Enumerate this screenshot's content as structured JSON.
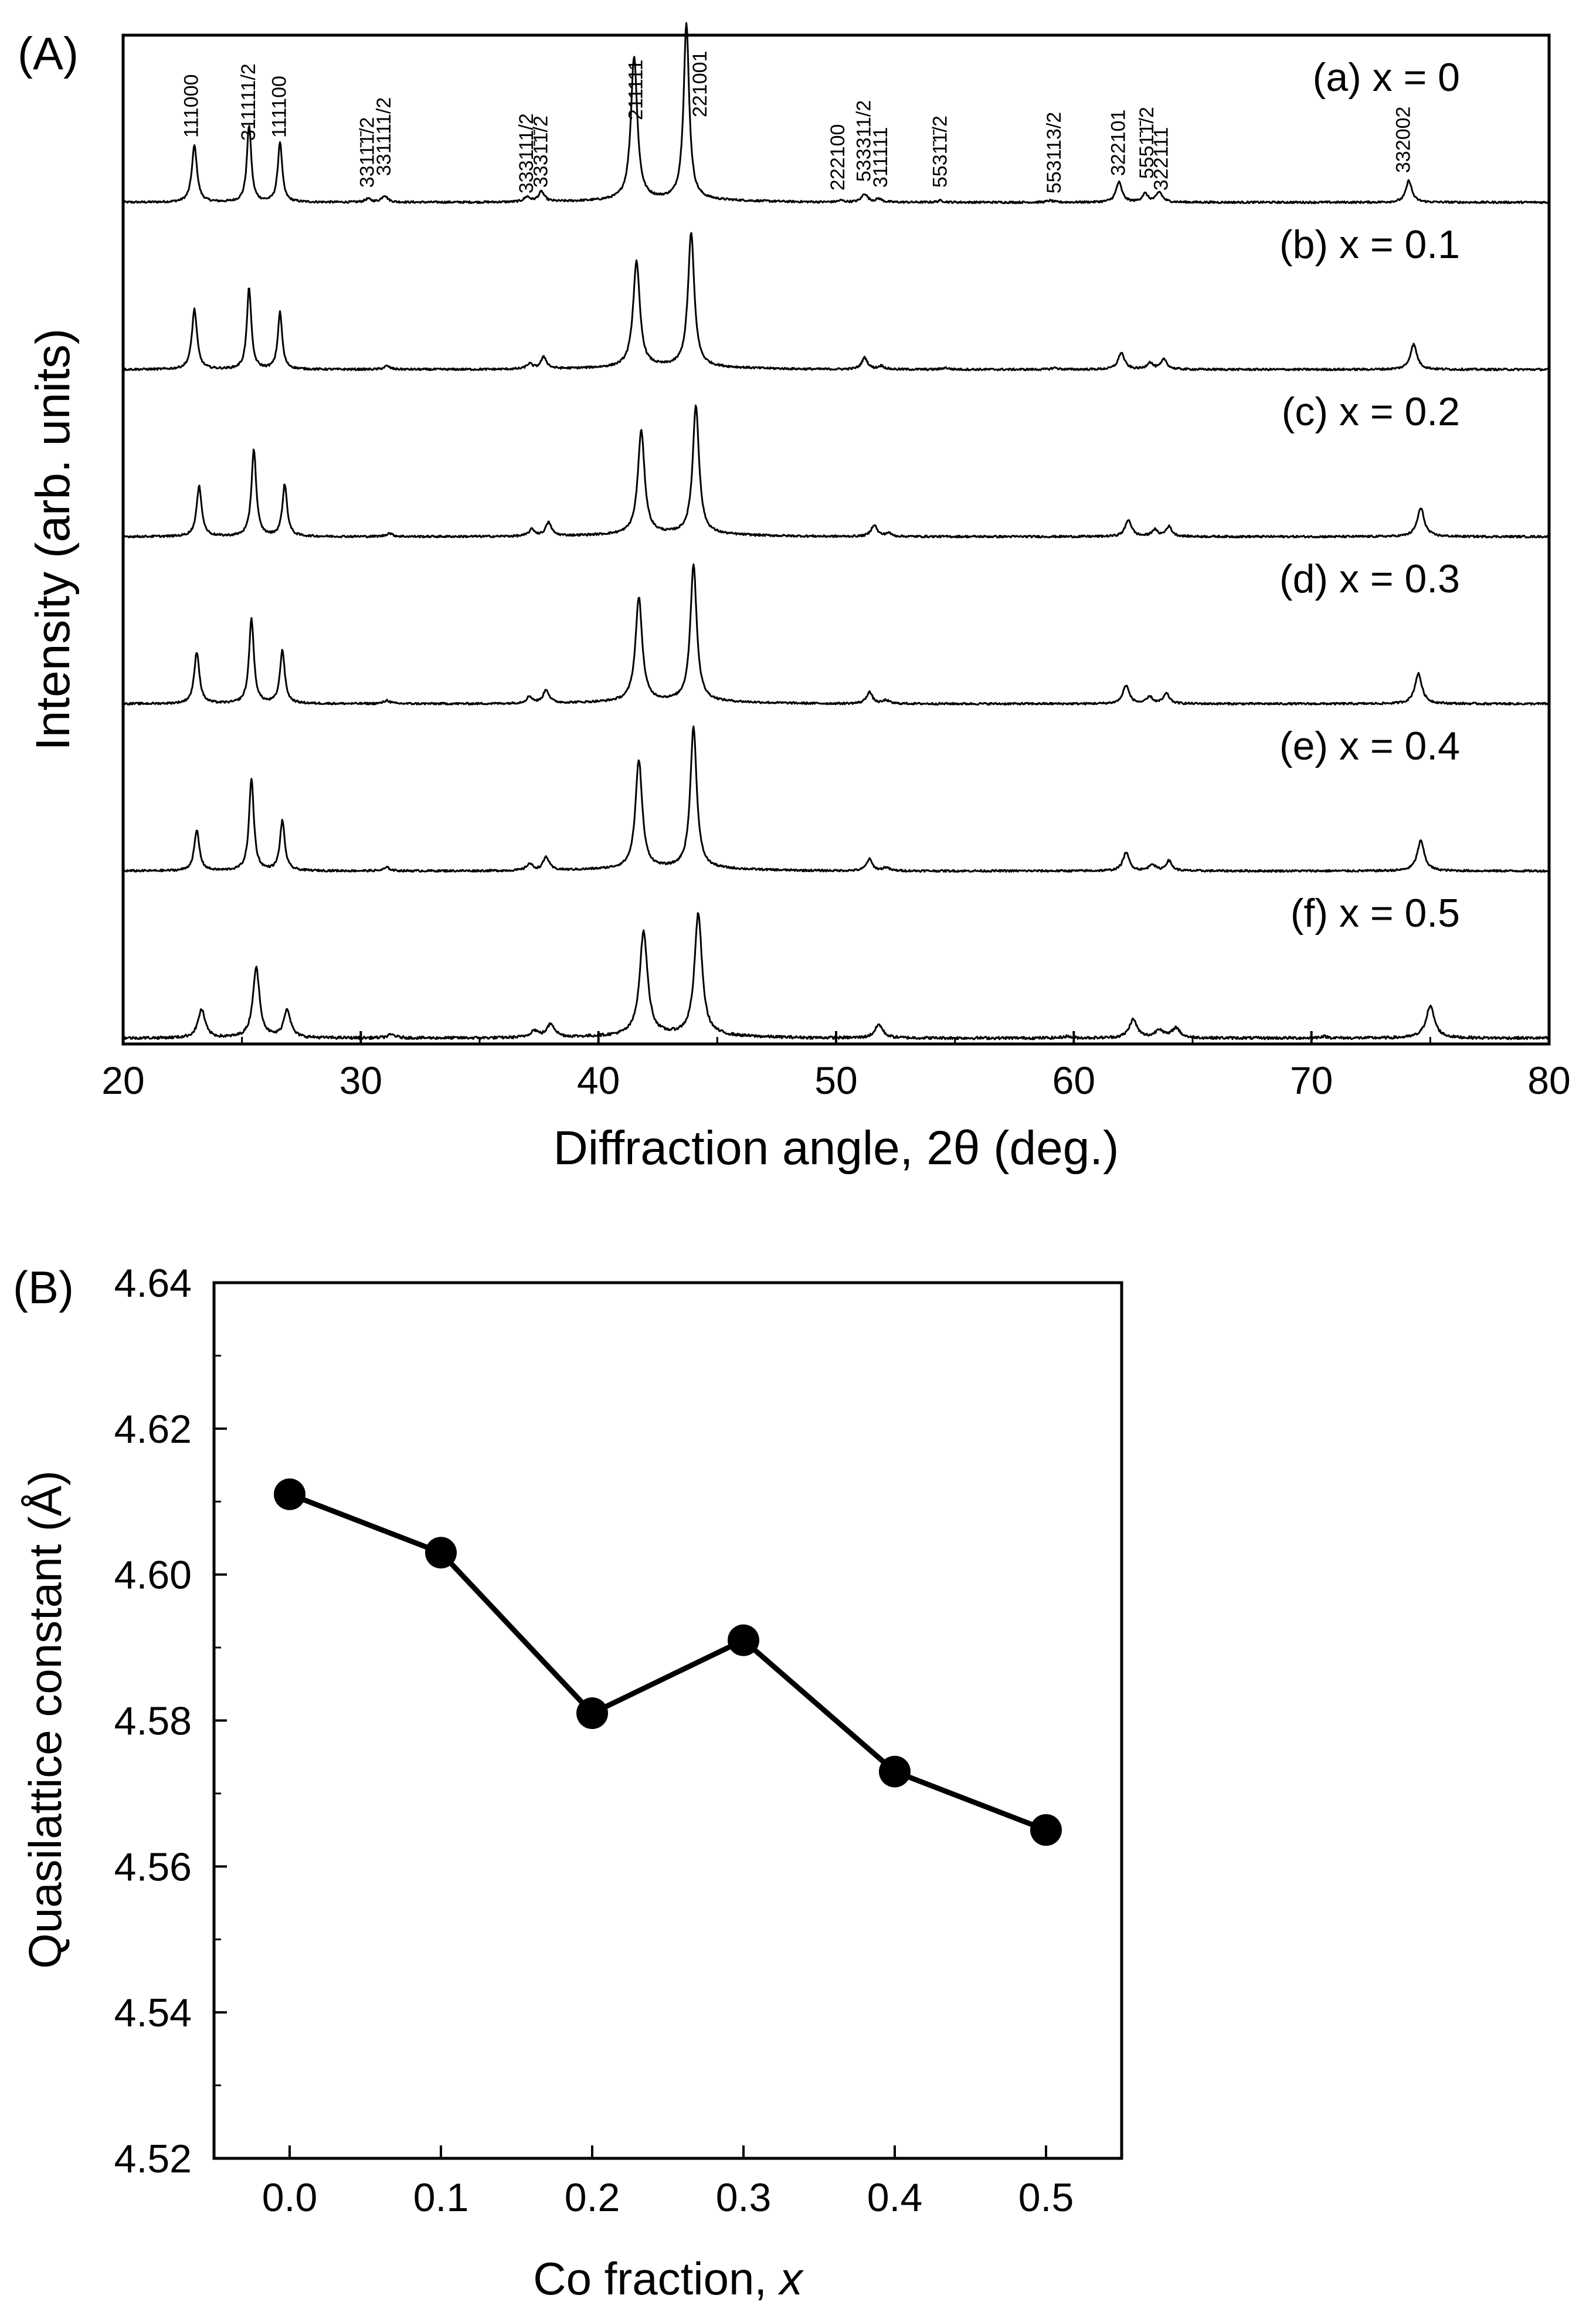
{
  "chart_data": [
    {
      "panel_label": "(A)",
      "type": "line",
      "title": "",
      "xlabel": "Diffraction angle, 2θ (deg.)",
      "ylabel": "Intensity (arb. units)",
      "xlim": [
        20,
        80
      ],
      "xticks": [
        20,
        30,
        40,
        50,
        60,
        70,
        80
      ],
      "grid": false,
      "series": [
        {
          "name": "(a) x = 0",
          "baseline": 1.0,
          "noise": 0.006,
          "peaks": [
            [
              23.0,
              0.34,
              0.13
            ],
            [
              25.3,
              0.46,
              0.11
            ],
            [
              26.6,
              0.36,
              0.11
            ],
            [
              30.3,
              0.02,
              0.15
            ],
            [
              31.0,
              0.04,
              0.15
            ],
            [
              37.0,
              0.03,
              0.15
            ],
            [
              37.6,
              0.06,
              0.15
            ],
            [
              41.5,
              0.86,
              0.16
            ],
            [
              43.7,
              1.05,
              0.14
            ],
            [
              50.2,
              0.01,
              0.15
            ],
            [
              51.2,
              0.05,
              0.15
            ],
            [
              51.8,
              0.02,
              0.15
            ],
            [
              54.4,
              0.01,
              0.15
            ],
            [
              59.0,
              0.01,
              0.15
            ],
            [
              61.9,
              0.12,
              0.15
            ],
            [
              63.0,
              0.05,
              0.15
            ],
            [
              63.6,
              0.06,
              0.15
            ],
            [
              74.1,
              0.13,
              0.15
            ]
          ]
        },
        {
          "name": "(b) x = 0.1",
          "baseline": 2.0,
          "noise": 0.006,
          "peaks": [
            [
              23.0,
              0.36,
              0.13
            ],
            [
              25.3,
              0.49,
              0.11
            ],
            [
              26.6,
              0.34,
              0.11
            ],
            [
              31.1,
              0.02,
              0.15
            ],
            [
              37.1,
              0.03,
              0.15
            ],
            [
              37.7,
              0.07,
              0.15
            ],
            [
              41.6,
              0.63,
              0.17
            ],
            [
              43.9,
              0.8,
              0.16
            ],
            [
              51.2,
              0.07,
              0.15
            ],
            [
              51.9,
              0.02,
              0.15
            ],
            [
              54.6,
              0.01,
              0.15
            ],
            [
              59.2,
              0.01,
              0.15
            ],
            [
              62.0,
              0.1,
              0.16
            ],
            [
              63.2,
              0.04,
              0.15
            ],
            [
              63.8,
              0.06,
              0.15
            ],
            [
              74.3,
              0.15,
              0.17
            ]
          ]
        },
        {
          "name": "(c) x = 0.2",
          "baseline": 3.0,
          "noise": 0.006,
          "peaks": [
            [
              23.2,
              0.3,
              0.13
            ],
            [
              25.5,
              0.52,
              0.12
            ],
            [
              26.8,
              0.31,
              0.12
            ],
            [
              31.2,
              0.02,
              0.15
            ],
            [
              37.2,
              0.04,
              0.15
            ],
            [
              37.9,
              0.08,
              0.15
            ],
            [
              41.8,
              0.62,
              0.17
            ],
            [
              44.1,
              0.77,
              0.16
            ],
            [
              51.6,
              0.07,
              0.15
            ],
            [
              52.2,
              0.02,
              0.15
            ],
            [
              62.3,
              0.1,
              0.16
            ],
            [
              63.4,
              0.04,
              0.15
            ],
            [
              64.0,
              0.06,
              0.15
            ],
            [
              74.6,
              0.17,
              0.18
            ]
          ]
        },
        {
          "name": "(d) x = 0.3",
          "baseline": 4.0,
          "noise": 0.006,
          "peaks": [
            [
              23.1,
              0.31,
              0.13
            ],
            [
              25.4,
              0.51,
              0.12
            ],
            [
              26.7,
              0.32,
              0.12
            ],
            [
              31.1,
              0.02,
              0.15
            ],
            [
              37.1,
              0.04,
              0.15
            ],
            [
              37.8,
              0.08,
              0.15
            ],
            [
              41.7,
              0.62,
              0.17
            ],
            [
              44.0,
              0.82,
              0.16
            ],
            [
              51.4,
              0.07,
              0.15
            ],
            [
              52.1,
              0.02,
              0.15
            ],
            [
              62.2,
              0.11,
              0.16
            ],
            [
              63.2,
              0.04,
              0.15
            ],
            [
              63.9,
              0.06,
              0.15
            ],
            [
              74.5,
              0.18,
              0.18
            ]
          ]
        },
        {
          "name": "(e) x = 0.4",
          "baseline": 5.0,
          "noise": 0.006,
          "peaks": [
            [
              23.1,
              0.24,
              0.13
            ],
            [
              25.4,
              0.55,
              0.12
            ],
            [
              26.7,
              0.3,
              0.12
            ],
            [
              31.1,
              0.02,
              0.15
            ],
            [
              37.1,
              0.04,
              0.15
            ],
            [
              37.8,
              0.08,
              0.15
            ],
            [
              41.7,
              0.65,
              0.17
            ],
            [
              44.0,
              0.85,
              0.16
            ],
            [
              51.4,
              0.07,
              0.15
            ],
            [
              52.1,
              0.02,
              0.15
            ],
            [
              62.2,
              0.11,
              0.16
            ],
            [
              63.3,
              0.04,
              0.15
            ],
            [
              64.0,
              0.06,
              0.15
            ],
            [
              74.6,
              0.18,
              0.18
            ]
          ]
        },
        {
          "name": "(f) x = 0.5",
          "baseline": 6.0,
          "noise": 0.008,
          "peaks": [
            [
              23.3,
              0.17,
              0.18
            ],
            [
              25.6,
              0.42,
              0.17
            ],
            [
              26.9,
              0.17,
              0.17
            ],
            [
              31.3,
              0.02,
              0.2
            ],
            [
              37.3,
              0.04,
              0.2
            ],
            [
              38.0,
              0.08,
              0.2
            ],
            [
              41.9,
              0.62,
              0.2
            ],
            [
              44.2,
              0.73,
              0.19
            ],
            [
              51.8,
              0.08,
              0.2
            ],
            [
              59.7,
              0.01,
              0.2
            ],
            [
              62.5,
              0.11,
              0.2
            ],
            [
              63.6,
              0.05,
              0.2
            ],
            [
              64.3,
              0.06,
              0.2
            ],
            [
              70.5,
              0.01,
              0.2
            ],
            [
              75.0,
              0.19,
              0.22
            ]
          ]
        }
      ],
      "peak_labels": [
        {
          "text": "111000",
          "x": 22.9
        },
        {
          "text": "311111/2",
          "x": 25.3
        },
        {
          "text": "111100",
          "x": 26.6
        },
        {
          "text": "3311̄1̄/2",
          "x": 30.3
        },
        {
          "text": "331111/2",
          "x": 31.0
        },
        {
          "text": "333111/2",
          "x": 37.0
        },
        {
          "text": "3331̄1̄/2",
          "x": 37.6
        },
        {
          "text": "211111",
          "x": 41.6
        },
        {
          "text": "221001",
          "x": 44.3
        },
        {
          "text": "222100",
          "x": 50.1
        },
        {
          "text": "533311/2",
          "x": 51.2
        },
        {
          "text": "311111",
          "x": 51.9
        },
        {
          "text": "5531̄1̄/2",
          "x": 54.4
        },
        {
          "text": "553113/2",
          "x": 59.2
        },
        {
          "text": "322101",
          "x": 61.9
        },
        {
          "text": "5551̄1̄/2",
          "x": 63.1
        },
        {
          "text": "322111",
          "x": 63.7
        },
        {
          "text": "332002",
          "x": 73.9
        }
      ]
    },
    {
      "panel_label": "(B)",
      "type": "scatter",
      "title": "",
      "xlabel": "Co fraction, x",
      "xlabel_prefix": "Co fraction, ",
      "xlabel_var": "x",
      "ylabel": "Quasilattice constant (Å)",
      "xlim": [
        -0.05,
        0.55
      ],
      "ylim": [
        4.52,
        4.64
      ],
      "xticks": [
        "0.0",
        "0.1",
        "0.2",
        "0.3",
        "0.4",
        "0.5"
      ],
      "yticks": [
        "4.52",
        "4.54",
        "4.56",
        "4.58",
        "4.60",
        "4.62",
        "4.64"
      ],
      "grid": false,
      "x": [
        0.0,
        0.1,
        0.2,
        0.3,
        0.4,
        0.5
      ],
      "y": [
        4.611,
        4.603,
        4.581,
        4.591,
        4.573,
        4.565
      ]
    }
  ]
}
